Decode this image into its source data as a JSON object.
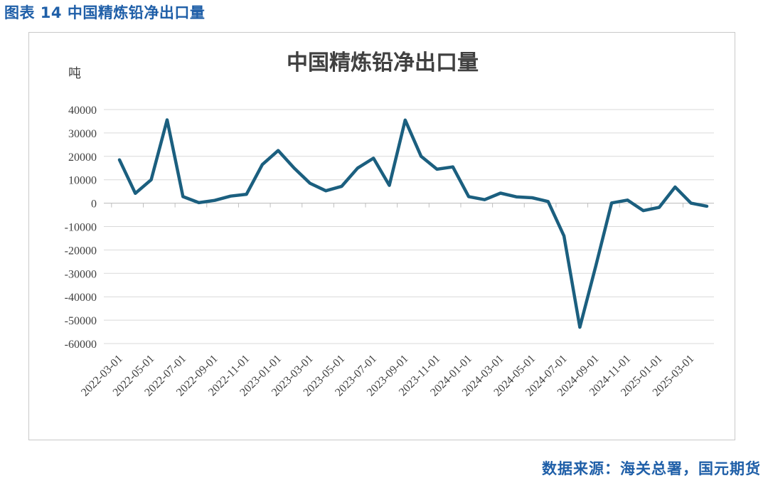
{
  "figure_title": "图表 14 中国精炼铅净出口量",
  "source_text": "数据来源：海关总署，国元期货",
  "colors": {
    "line": "#1b5f7f",
    "accent": "#1f5fa8",
    "grid": "#d9d9d9"
  },
  "chart_data": {
    "type": "line",
    "title": "中国精炼铅净出口量",
    "ylabel": "吨",
    "xlabel": "",
    "ylim": [
      -60000,
      40000
    ],
    "yticks": [
      40000,
      30000,
      20000,
      10000,
      0,
      -10000,
      -20000,
      -30000,
      -40000,
      -50000,
      -60000
    ],
    "grid": true,
    "x": [
      "2022-03-01",
      "2022-04-01",
      "2022-05-01",
      "2022-06-01",
      "2022-07-01",
      "2022-08-01",
      "2022-09-01",
      "2022-10-01",
      "2022-11-01",
      "2022-12-01",
      "2023-01-01",
      "2023-02-01",
      "2023-03-01",
      "2023-04-01",
      "2023-05-01",
      "2023-06-01",
      "2023-07-01",
      "2023-08-01",
      "2023-09-01",
      "2023-10-01",
      "2023-11-01",
      "2023-12-01",
      "2024-01-01",
      "2024-02-01",
      "2024-03-01",
      "2024-04-01",
      "2024-05-01",
      "2024-06-01",
      "2024-07-01",
      "2024-08-01",
      "2024-09-01",
      "2024-10-01",
      "2024-11-01",
      "2024-12-01",
      "2025-01-01",
      "2025-02-01",
      "2025-03-01",
      "2025-04-01"
    ],
    "xtick_labels": [
      "2022-03-01",
      "2022-05-01",
      "2022-07-01",
      "2022-09-01",
      "2022-11-01",
      "2023-01-01",
      "2023-03-01",
      "2023-05-01",
      "2023-07-01",
      "2023-09-01",
      "2023-11-01",
      "2024-01-01",
      "2024-03-01",
      "2024-05-01",
      "2024-07-01",
      "2024-09-01",
      "2024-11-01",
      "2025-01-01",
      "2025-03-01"
    ],
    "series": [
      {
        "values": [
          18500,
          4200,
          10000,
          35600,
          2800,
          200,
          1200,
          3000,
          3800,
          16500,
          22500,
          15000,
          8500,
          5300,
          7200,
          15000,
          19200,
          7600,
          35500,
          20000,
          14500,
          15500,
          2800,
          1500,
          4300,
          2700,
          2300,
          700,
          -14000,
          -53000,
          -27000,
          100,
          1300,
          -3200,
          -1800,
          6900,
          0,
          -1300
        ]
      }
    ]
  }
}
